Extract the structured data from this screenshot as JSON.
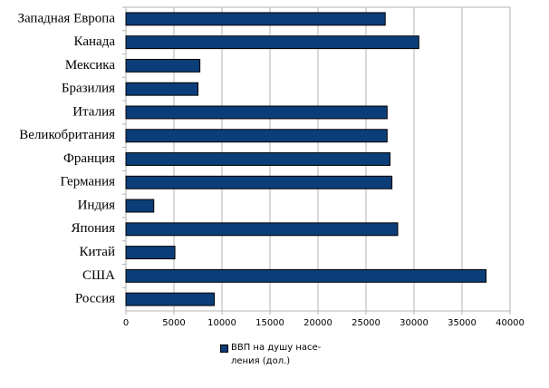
{
  "chart_data": {
    "type": "barh",
    "categories": [
      "Западная Европа",
      "Канада",
      "Мексика",
      "Бразилия",
      "Италия",
      "Великобритания",
      "Франция",
      "Германия",
      "Индия",
      "Япония",
      "Китай",
      "США",
      "Россия"
    ],
    "series": [
      {
        "name": "ВВП на душу насе-\nления (дол.)",
        "color": "#0b3d78",
        "values": [
          27000,
          30500,
          7700,
          7500,
          27200,
          27200,
          27500,
          27700,
          2900,
          28300,
          5100,
          37500,
          9200
        ]
      }
    ],
    "xlim": [
      0,
      40000
    ],
    "xticks": [
      0,
      5000,
      10000,
      15000,
      20000,
      25000,
      30000,
      35000,
      40000
    ],
    "grid": true
  }
}
